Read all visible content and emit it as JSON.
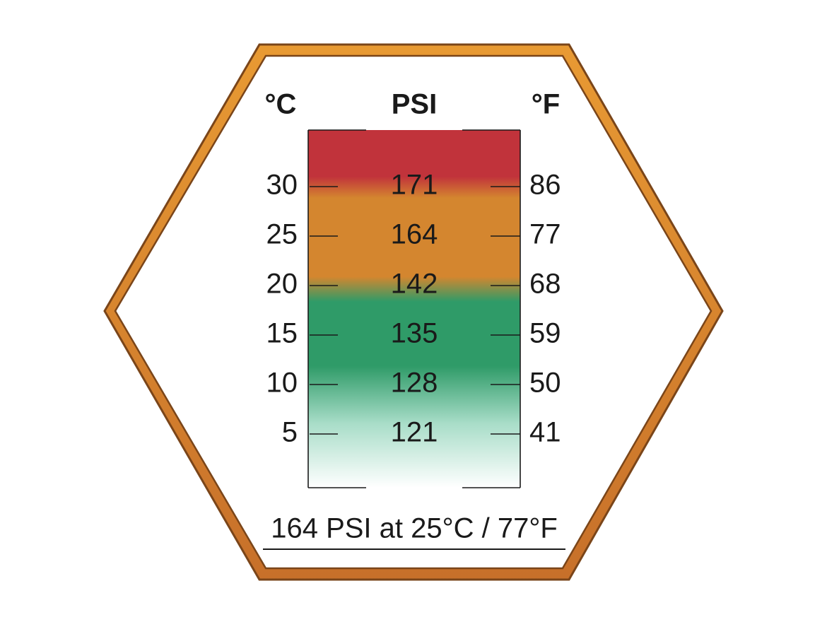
{
  "headers": {
    "celsius": "°C",
    "psi": "PSI",
    "fahrenheit": "°F"
  },
  "rows": [
    {
      "celsius": 30,
      "psi": 171,
      "fahrenheit": 86
    },
    {
      "celsius": 25,
      "psi": 164,
      "fahrenheit": 77
    },
    {
      "celsius": 20,
      "psi": 142,
      "fahrenheit": 68
    },
    {
      "celsius": 15,
      "psi": 135,
      "fahrenheit": 59
    },
    {
      "celsius": 10,
      "psi": 128,
      "fahrenheit": 50
    },
    {
      "celsius": 5,
      "psi": 121,
      "fahrenheit": 41
    }
  ],
  "footer": "164 PSI at 25°C / 77°F"
}
